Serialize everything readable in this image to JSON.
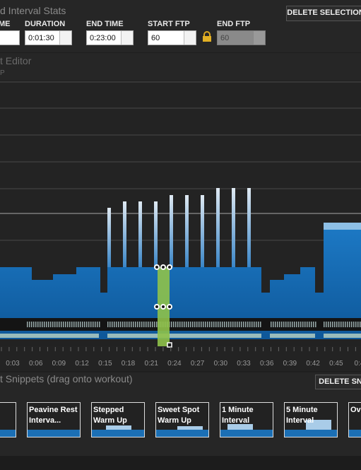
{
  "header": {
    "title": "d Interval Stats",
    "delete_button": "DELETE SELECTION"
  },
  "fields": [
    {
      "label": "ME",
      "value": ""
    },
    {
      "label": "DURATION",
      "value": "0:01:30"
    },
    {
      "label": "END TIME",
      "value": "0:23:00"
    },
    {
      "label": "START FTP",
      "value": "60"
    },
    {
      "label": "END FTP",
      "value": "60"
    }
  ],
  "editor": {
    "title": "t Editor",
    "subtitle": "P",
    "time_labels": [
      "0:03",
      "0:06",
      "0:09",
      "0:12",
      "0:15",
      "0:18",
      "0:21",
      "0:24",
      "0:27",
      "0:30",
      "0:33",
      "0:36",
      "0:39",
      "0:42",
      "0:45",
      "0:4"
    ]
  },
  "snippets": {
    "title": "t Snippets (drag onto workout)",
    "delete_button": "DELETE SN",
    "items": [
      "",
      "Peavine Rest Interva...",
      "Stepped Warm Up",
      "Sweet Spot Warm Up",
      "1 Minute Interval",
      "5 Minute Interval",
      "Ov Un"
    ]
  }
}
